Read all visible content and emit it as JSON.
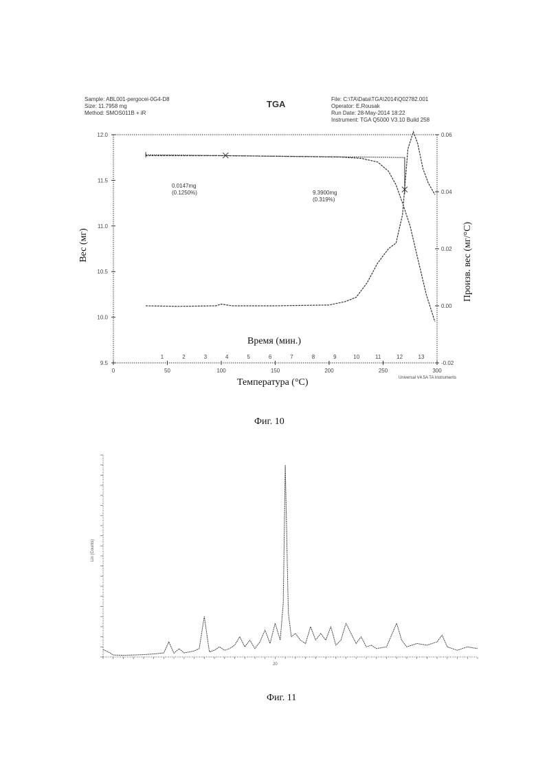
{
  "fig10": {
    "header": {
      "sample": "Sample: ABL001-pergocei-0G4-D8",
      "size": "Size: 11.7958 mg",
      "method": "Method: SMOS011B + iR",
      "center_title": "TGA",
      "file": "File: C:\\TA\\Data\\TGA\\2014\\Q02782.001",
      "operator": "Operator: E.Rousak",
      "run_date": "Run Date: 28-May-2014 18:22",
      "instrument": "Instrument: TGA Q5000 V3.10 Build 258"
    },
    "ylabel": "Вес (мг)",
    "y2label": "Произв. вес (мг/°C)",
    "xlabel_time": "Время (мин.)",
    "xlabel_temp": "Температура (°C)",
    "footer": "Universal V4.5A TA Instruments",
    "annotations": [
      {
        "line1": "0.0147mg",
        "line2": "(0.1250%)"
      },
      {
        "line1": "9.3900mg",
        "line2": "(0.319%)"
      }
    ],
    "y_ticks": [
      "12.0",
      "11.5",
      "11.0",
      "10.5",
      "10.0",
      "9.5"
    ],
    "y2_ticks": [
      "0.06",
      "0.04",
      "0.02",
      "0.00",
      "-0.02"
    ],
    "x_temp_ticks": [
      "0",
      "50",
      "100",
      "150",
      "200",
      "250",
      "300"
    ],
    "x_time_ticks": [
      "1",
      "2",
      "3",
      "4",
      "5",
      "6",
      "7",
      "8",
      "9",
      "10",
      "11",
      "12",
      "13"
    ]
  },
  "fig10_caption": "Фиг. 10",
  "fig11": {
    "ylabel": "Lin (Counts)",
    "x_tick_label": "20"
  },
  "fig11_caption": "Фиг. 11",
  "chart_data": [
    {
      "type": "line",
      "title": "TGA",
      "xlabel": "Температура (°C)",
      "ylabel": "Вес (мг)",
      "y2label": "Произв. вес (мг/°C)",
      "xlim": [
        0,
        300
      ],
      "ylim": [
        9.5,
        12.0
      ],
      "y2lim": [
        -0.02,
        0.06
      ],
      "series": [
        {
          "axis": "left",
          "x": [
            30,
            60,
            100,
            140,
            180,
            210,
            230,
            245,
            255,
            262,
            268,
            275,
            282,
            290,
            298
          ],
          "y": [
            11.77,
            11.77,
            11.77,
            11.765,
            11.76,
            11.755,
            11.74,
            11.7,
            11.6,
            11.45,
            11.25,
            11.0,
            10.65,
            10.25,
            9.95
          ]
        },
        {
          "axis": "right",
          "x": [
            30,
            60,
            95,
            100,
            110,
            150,
            200,
            215,
            225,
            235,
            245,
            255,
            262,
            268,
            273,
            278,
            282,
            287,
            292,
            298
          ],
          "y": [
            0.0,
            -0.0002,
            0.0,
            0.0006,
            0.0,
            0.0,
            0.0003,
            0.0015,
            0.003,
            0.008,
            0.015,
            0.02,
            0.022,
            0.032,
            0.055,
            0.061,
            0.057,
            0.048,
            0.043,
            0.039
          ]
        }
      ]
    },
    {
      "type": "line",
      "title": "",
      "xlabel": "",
      "ylabel": "Lin (Counts)",
      "xlim": [
        3,
        40
      ],
      "ylim": [
        0,
        6000
      ],
      "x_ticks": [
        "20"
      ],
      "series": [
        {
          "x": [
            3,
            3.5,
            4,
            5,
            6,
            7,
            8,
            9,
            9.5,
            10,
            10.5,
            11,
            12,
            12.5,
            13,
            13.5,
            14,
            14.5,
            15,
            15.5,
            16,
            16.5,
            17,
            17.5,
            18,
            18.5,
            19,
            19.5,
            20,
            20.5,
            20.8,
            21,
            21.3,
            21.6,
            22,
            22.5,
            23,
            23.5,
            24,
            24.5,
            25,
            25.5,
            26,
            26.5,
            27,
            28,
            28.5,
            29,
            29.5,
            30,
            31,
            32,
            32.5,
            33,
            34,
            35,
            36,
            36.5,
            37,
            38,
            39,
            40
          ],
          "y": [
            220,
            150,
            60,
            50,
            60,
            70,
            90,
            120,
            450,
            110,
            250,
            120,
            180,
            250,
            1200,
            150,
            200,
            300,
            200,
            250,
            350,
            600,
            300,
            500,
            250,
            450,
            800,
            400,
            1000,
            500,
            1600,
            5700,
            1300,
            600,
            700,
            500,
            400,
            900,
            500,
            700,
            500,
            900,
            350,
            500,
            1000,
            400,
            600,
            300,
            350,
            250,
            300,
            1000,
            500,
            300,
            400,
            350,
            450,
            650,
            300,
            200,
            300,
            250
          ]
        }
      ]
    }
  ]
}
